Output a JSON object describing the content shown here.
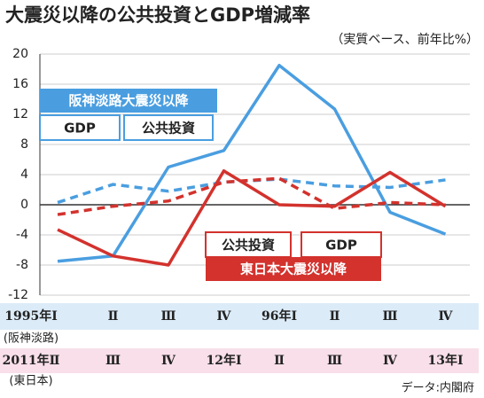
{
  "chart_data": {
    "type": "line",
    "title": "大震災以降の公共投資とGDP増減率",
    "subtitle": "（実質ベース、前年比%）",
    "source": "データ:内閣府",
    "categories": [
      "1995年Ⅰ",
      "Ⅱ",
      "Ⅲ",
      "Ⅳ",
      "96年Ⅰ",
      "Ⅱ",
      "Ⅲ",
      "Ⅳ"
    ],
    "categories2": [
      "2011年Ⅱ",
      "Ⅲ",
      "Ⅳ",
      "12年Ⅰ",
      "Ⅱ",
      "Ⅲ",
      "Ⅳ",
      "13年Ⅰ"
    ],
    "row_notes": [
      "(阪神淡路)",
      "(東日本)"
    ],
    "groups": [
      "阪神淡路大震災以降",
      "東日本大震災以降"
    ],
    "series": [
      {
        "name": "公共投資",
        "group": 0,
        "color": "#4a9ee0",
        "dashed": false,
        "values": [
          -7.5,
          -6.8,
          5,
          7.2,
          18.5,
          12.7,
          -1,
          -3.9
        ]
      },
      {
        "name": "GDP",
        "group": 0,
        "color": "#4a9ee0",
        "dashed": true,
        "values": [
          0.3,
          2.7,
          1.8,
          3.0,
          3.4,
          2.5,
          2.3,
          3.3
        ]
      },
      {
        "name": "公共投資",
        "group": 1,
        "color": "#d3322d",
        "dashed": false,
        "values": [
          -3.3,
          -6.8,
          -8,
          4.5,
          0,
          -0.2,
          4.3,
          -0.2
        ]
      },
      {
        "name": "GDP",
        "group": 1,
        "color": "#d3322d",
        "dashed": true,
        "values": [
          -1.3,
          -0.2,
          0.5,
          3.0,
          3.5,
          -0.5,
          0.3,
          0
        ]
      }
    ],
    "ylim": [
      -12,
      20
    ],
    "yticks": [
      -12,
      -8,
      -4,
      0,
      4,
      8,
      12,
      16,
      20
    ],
    "grid": true
  }
}
